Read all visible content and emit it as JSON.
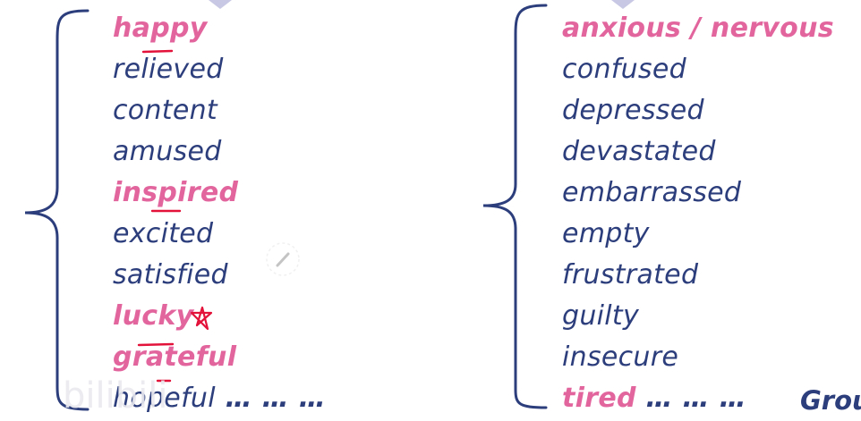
{
  "left_group": {
    "words": [
      {
        "text": "happy",
        "highlight": true
      },
      {
        "text": "relieved",
        "highlight": false
      },
      {
        "text": "content",
        "highlight": false
      },
      {
        "text": "amused",
        "highlight": false
      },
      {
        "text": "inspired",
        "highlight": true
      },
      {
        "text": "excited",
        "highlight": false
      },
      {
        "text": "satisfied",
        "highlight": false
      },
      {
        "text": "lucky",
        "highlight": true
      },
      {
        "text": "grateful",
        "highlight": true
      },
      {
        "text": "hopeful",
        "highlight": false,
        "suffix": " … … …"
      }
    ]
  },
  "right_group": {
    "words": [
      {
        "text": "anxious / nervous",
        "highlight": true
      },
      {
        "text": "confused",
        "highlight": false
      },
      {
        "text": "depressed",
        "highlight": false
      },
      {
        "text": "devastated",
        "highlight": false
      },
      {
        "text": "embarrassed",
        "highlight": false
      },
      {
        "text": "empty",
        "highlight": false
      },
      {
        "text": "frustrated",
        "highlight": false
      },
      {
        "text": "guilty",
        "highlight": false
      },
      {
        "text": "insecure",
        "highlight": false
      },
      {
        "text": "tired",
        "highlight": true,
        "suffix": " … … …"
      }
    ]
  },
  "corner_label": "Grou",
  "watermark_text": "bilibili",
  "colors": {
    "plain_text": "#2d3e7c",
    "highlight_text": "#e2659e",
    "brace": "#2d3e7c",
    "annotation": "#e2123a",
    "pointer": "#c8c8e4"
  },
  "icons": {
    "pointer": "triangle-pointer-icon",
    "edit": "pencil-cursor-icon",
    "annotation": "star-doodle-icon"
  }
}
